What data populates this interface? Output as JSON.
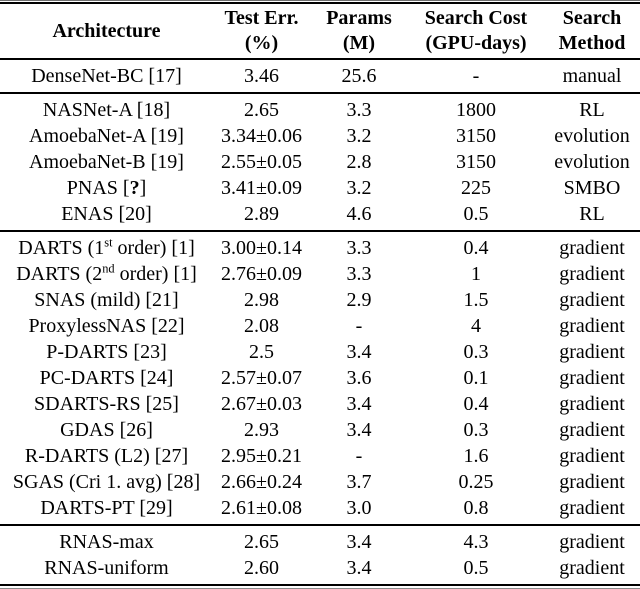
{
  "table": {
    "headers": [
      {
        "id": "architecture",
        "lines": [
          "Architecture",
          ""
        ]
      },
      {
        "id": "test-err",
        "lines": [
          "Test Err.",
          "(%)"
        ]
      },
      {
        "id": "params",
        "lines": [
          "Params",
          "(M)"
        ]
      },
      {
        "id": "search-cost",
        "lines": [
          "Search Cost",
          "(GPU-days)"
        ]
      },
      {
        "id": "search-method",
        "lines": [
          "Search",
          "Method"
        ]
      }
    ],
    "sections": [
      {
        "name": "manual-baselines",
        "rows": [
          {
            "arch": [
              {
                "t": "DenseNet-BC [17]"
              }
            ],
            "test_err": "3.46",
            "params": "25.6",
            "search_cost": "-",
            "method": "manual"
          }
        ]
      },
      {
        "name": "non-gradient-nas",
        "rows": [
          {
            "arch": [
              {
                "t": "NASNet-A [18]"
              }
            ],
            "test_err": "2.65",
            "params": "3.3",
            "search_cost": "1800",
            "method": "RL"
          },
          {
            "arch": [
              {
                "t": "AmoebaNet-A [19]"
              }
            ],
            "test_err": "3.34±0.06",
            "params": "3.2",
            "search_cost": "3150",
            "method": "evolution"
          },
          {
            "arch": [
              {
                "t": "AmoebaNet-B [19]"
              }
            ],
            "test_err": "2.55±0.05",
            "params": "2.8",
            "search_cost": "3150",
            "method": "evolution"
          },
          {
            "arch": [
              {
                "t": "PNAS ["
              },
              {
                "t": "?",
                "style": "bold"
              },
              {
                "t": "]"
              }
            ],
            "test_err": "3.41±0.09",
            "params": "3.2",
            "search_cost": "225",
            "method": "SMBO"
          },
          {
            "arch": [
              {
                "t": "ENAS [20]"
              }
            ],
            "test_err": "2.89",
            "params": "4.6",
            "search_cost": "0.5",
            "method": "RL"
          }
        ]
      },
      {
        "name": "gradient-nas",
        "rows": [
          {
            "arch": [
              {
                "t": "DARTS (1"
              },
              {
                "t": "st",
                "style": "sup"
              },
              {
                "t": " order) [1]"
              }
            ],
            "test_err": "3.00±0.14",
            "params": "3.3",
            "search_cost": "0.4",
            "method": "gradient"
          },
          {
            "arch": [
              {
                "t": "DARTS (2"
              },
              {
                "t": "nd",
                "style": "sup"
              },
              {
                "t": " order) [1]"
              }
            ],
            "test_err": "2.76±0.09",
            "params": "3.3",
            "search_cost": "1",
            "method": "gradient"
          },
          {
            "arch": [
              {
                "t": "SNAS (mild) [21]"
              }
            ],
            "test_err": "2.98",
            "params": "2.9",
            "search_cost": "1.5",
            "method": "gradient"
          },
          {
            "arch": [
              {
                "t": "ProxylessNAS [22]"
              }
            ],
            "test_err": "2.08",
            "params": "-",
            "search_cost": "4",
            "method": "gradient"
          },
          {
            "arch": [
              {
                "t": "P-DARTS [23]"
              }
            ],
            "test_err": "2.5",
            "params": "3.4",
            "search_cost": "0.3",
            "method": "gradient"
          },
          {
            "arch": [
              {
                "t": "PC-DARTS [24]"
              }
            ],
            "test_err": "2.57±0.07",
            "params": "3.6",
            "search_cost": "0.1",
            "method": "gradient"
          },
          {
            "arch": [
              {
                "t": "SDARTS-RS [25]"
              }
            ],
            "test_err": "2.67±0.03",
            "params": "3.4",
            "search_cost": "0.4",
            "method": "gradient"
          },
          {
            "arch": [
              {
                "t": "GDAS [26]"
              }
            ],
            "test_err": "2.93",
            "params": "3.4",
            "search_cost": "0.3",
            "method": "gradient"
          },
          {
            "arch": [
              {
                "t": "R-DARTS (L2) [27]"
              }
            ],
            "test_err": "2.95±0.21",
            "params": "-",
            "search_cost": "1.6",
            "method": "gradient"
          },
          {
            "arch": [
              {
                "t": "SGAS (Cri 1. avg) [28]"
              }
            ],
            "test_err": "2.66±0.24",
            "params": "3.7",
            "search_cost": "0.25",
            "method": "gradient"
          },
          {
            "arch": [
              {
                "t": "DARTS-PT [29]"
              }
            ],
            "test_err": "2.61±0.08",
            "params": "3.0",
            "search_cost": "0.8",
            "method": "gradient"
          }
        ]
      },
      {
        "name": "rnas-ours",
        "rows": [
          {
            "arch": [
              {
                "t": "RNAS-max"
              }
            ],
            "test_err": "2.65",
            "params": "3.4",
            "search_cost": "4.3",
            "method": "gradient"
          },
          {
            "arch": [
              {
                "t": "RNAS-uniform"
              }
            ],
            "test_err": "2.60",
            "params": "3.4",
            "search_cost": "0.5",
            "method": "gradient"
          }
        ]
      }
    ]
  },
  "colors": {
    "background": "#ffffff",
    "text": "#000000",
    "rule": "#000000"
  }
}
